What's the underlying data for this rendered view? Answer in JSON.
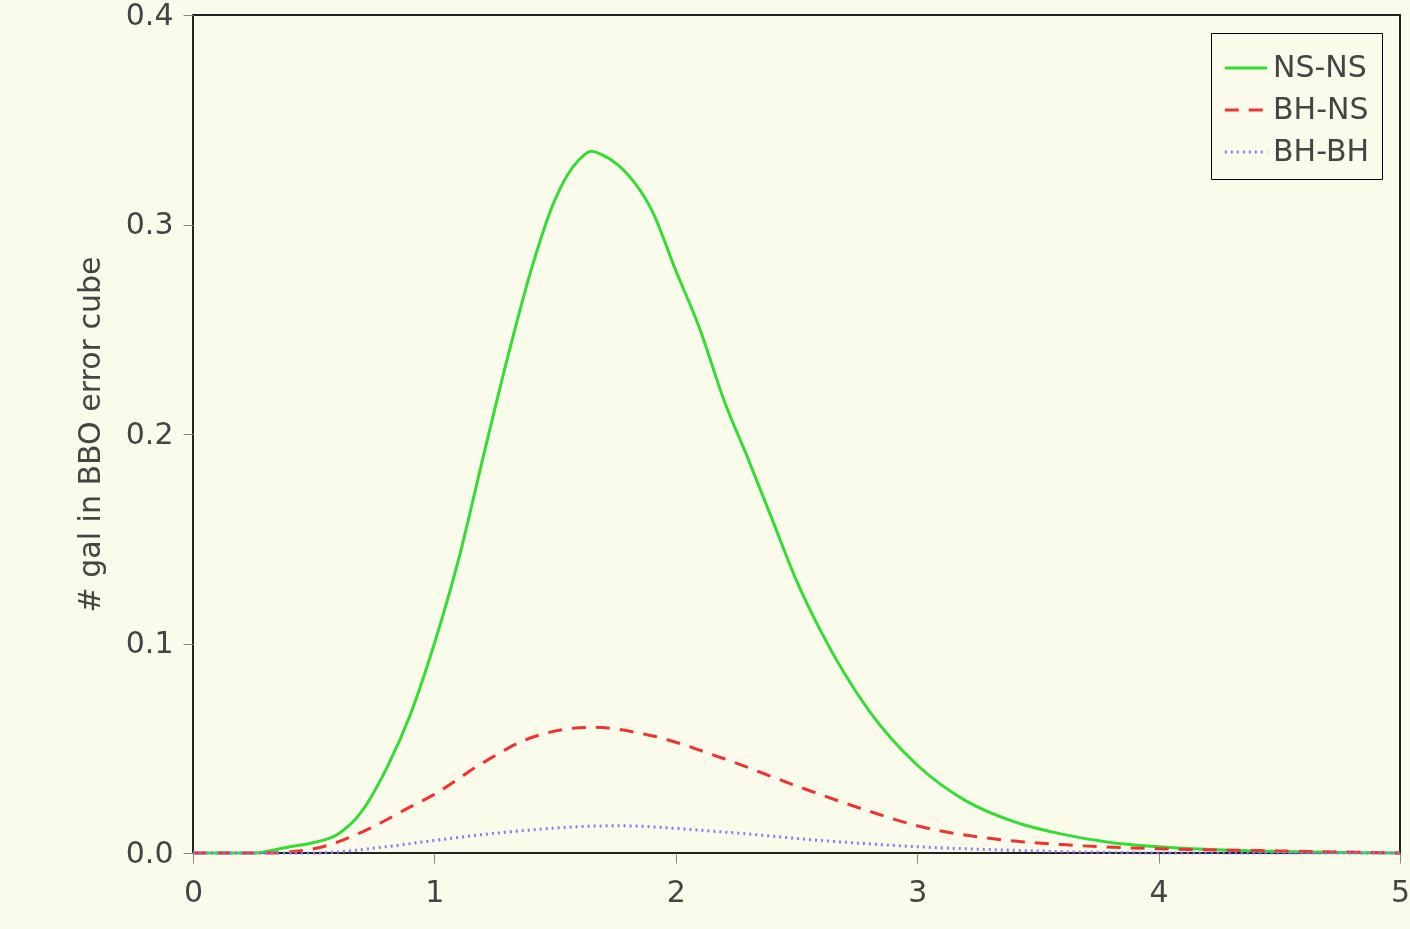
{
  "chart_data": {
    "type": "line",
    "ylabel": "# gal in BBO error cube",
    "xlim": [
      0,
      5
    ],
    "xticks": [
      0,
      1,
      2,
      3,
      4,
      5
    ],
    "ylim": [
      0,
      0.4
    ],
    "yticks": [
      {
        "value": 0,
        "label": "0.0"
      },
      {
        "value": 0.1,
        "label": "0.1"
      },
      {
        "value": 0.2,
        "label": "0.2"
      },
      {
        "value": 0.3,
        "label": "0.3"
      },
      {
        "value": 0.4,
        "label": "0.4"
      }
    ],
    "grid": false,
    "legend": "top right",
    "marker": "none",
    "series": [
      {
        "name": "NS-NS",
        "color": "#33dd33",
        "line_style": "solid",
        "x": [
          0,
          0.25,
          0.4,
          0.5,
          0.6,
          0.7,
          0.8,
          0.9,
          1.0,
          1.1,
          1.2,
          1.3,
          1.4,
          1.5,
          1.6,
          1.65,
          1.7,
          1.8,
          1.9,
          2.0,
          2.1,
          2.2,
          2.3,
          2.4,
          2.5,
          2.6,
          2.8,
          3.0,
          3.2,
          3.4,
          3.6,
          3.8,
          4.0,
          4.4,
          5.0
        ],
        "values": [
          0,
          0,
          0.003,
          0.005,
          0.009,
          0.02,
          0.04,
          0.066,
          0.1,
          0.14,
          0.188,
          0.235,
          0.278,
          0.312,
          0.331,
          0.335,
          0.333,
          0.324,
          0.307,
          0.278,
          0.25,
          0.216,
          0.188,
          0.159,
          0.13,
          0.106,
          0.068,
          0.042,
          0.025,
          0.015,
          0.009,
          0.005,
          0.003,
          0.001,
          0
        ]
      },
      {
        "name": "BH-NS",
        "color": "#ee3333",
        "line_style": "dashed",
        "x": [
          0,
          0.3,
          0.5,
          0.7,
          0.9,
          1.0,
          1.2,
          1.4,
          1.65,
          1.9,
          2.2,
          2.5,
          2.8,
          3.0,
          3.3,
          3.6,
          4.0,
          4.5,
          5.0
        ],
        "values": [
          0,
          0,
          0.002,
          0.01,
          0.022,
          0.028,
          0.043,
          0.055,
          0.06,
          0.056,
          0.045,
          0.032,
          0.02,
          0.013,
          0.007,
          0.004,
          0.002,
          0.001,
          0
        ]
      },
      {
        "name": "BH-BH",
        "color": "#8877ff",
        "line_style": "dotted",
        "x": [
          0,
          0.5,
          0.8,
          1.0,
          1.3,
          1.75,
          2.2,
          2.6,
          3.0,
          3.5,
          4.0,
          5.0
        ],
        "values": [
          0,
          0,
          0.003,
          0.006,
          0.01,
          0.013,
          0.01,
          0.006,
          0.003,
          0.001,
          0,
          0
        ]
      }
    ]
  }
}
